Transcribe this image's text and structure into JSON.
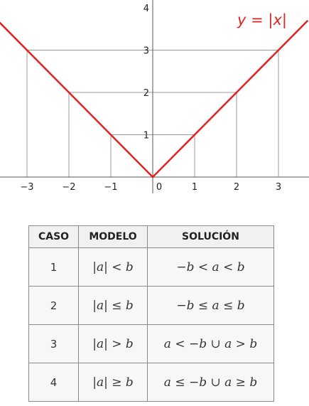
{
  "graph": {
    "function_label": "y = |x|",
    "curve_color": "#e1231f",
    "x_ticks": [
      "−3",
      "−2",
      "−1",
      "0",
      "1",
      "2",
      "3"
    ],
    "y_ticks": [
      "1",
      "2",
      "3",
      "4"
    ],
    "reference_points": [
      {
        "x": -3,
        "y": 3
      },
      {
        "x": -2,
        "y": 2
      },
      {
        "x": -1,
        "y": 1
      },
      {
        "x": 1,
        "y": 1
      },
      {
        "x": 2,
        "y": 2
      },
      {
        "x": 3,
        "y": 3
      }
    ]
  },
  "table": {
    "headers": [
      "CASO",
      "MODELO",
      "SOLUCIÓN"
    ],
    "rows": [
      {
        "caso": "1",
        "modelo": "|a| < b",
        "solucion": "−b < a < b"
      },
      {
        "caso": "2",
        "modelo": "|a| ≤ b",
        "solucion": "−b ≤ a ≤ b"
      },
      {
        "caso": "3",
        "modelo": "|a| > b",
        "solucion": "a < −b  ∪  a > b"
      },
      {
        "caso": "4",
        "modelo": "|a| ≥ b",
        "solucion": "a ≤ −b  ∪  a ≥ b"
      }
    ]
  }
}
